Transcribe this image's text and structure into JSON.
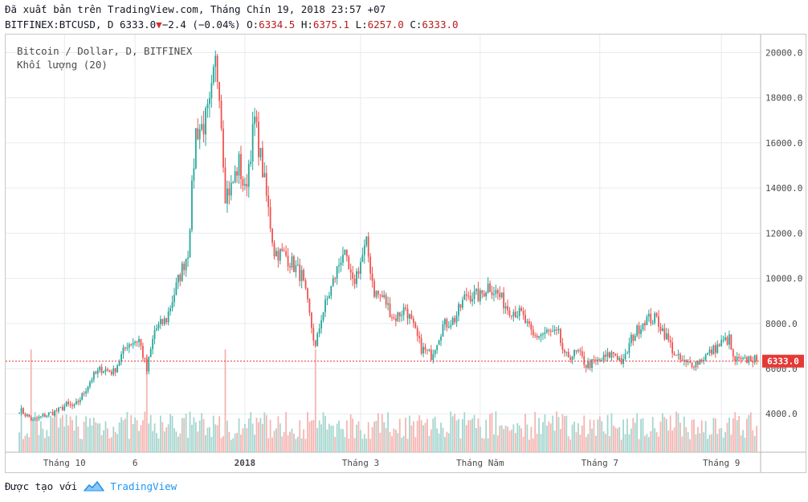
{
  "header": {
    "export_line": "Đã xuất bản trên TradingView.com, Tháng Chín 19, 2018 23:57 +07",
    "symbol": "BITFINEX:BTCUSD, D",
    "last": "6333.0",
    "change": "−2.4 (−0.04%)",
    "o_label": "O:",
    "o_val": "6334.5",
    "h_label": "H:",
    "h_val": "6375.1",
    "l_label": "L:",
    "l_val": "6257.0",
    "c_label": "C:",
    "c_val": "6333.0"
  },
  "legend": {
    "title": "Bitcoin / Dollar, D, BITFINEX",
    "volume": "Khối lượng (20)"
  },
  "footer": {
    "created_with": "Được tạo với",
    "brand": "TradingView"
  },
  "colors": {
    "up": "#26a69a",
    "down": "#ef5350",
    "vol_up": "#a5d6cf",
    "vol_down": "#f5b5b1",
    "last_price": "#e53935",
    "grid": "#e6ebf0"
  },
  "chart_data": {
    "type": "candlestick",
    "symbol": "BTCUSD",
    "exchange": "BITFINEX",
    "interval": "D",
    "ylim": [
      2300,
      20800
    ],
    "y_ticks": [
      "20000.0",
      "18000.0",
      "16000.0",
      "14000.0",
      "12000.0",
      "10000.0",
      "8000.0",
      "6000.0",
      "4000.0"
    ],
    "x_ticks": [
      "Tháng 10",
      "6",
      "2018",
      "Tháng 3",
      "Tháng Năm",
      "Tháng 7",
      "Tháng 9"
    ],
    "last_price_label": "6333.0",
    "last_price": 6333,
    "grid": true,
    "close_path": [
      [
        "2017-09-08",
        4200
      ],
      [
        "2017-09-15",
        3700
      ],
      [
        "2017-09-20",
        3900
      ],
      [
        "2017-09-28",
        4150
      ],
      [
        "2017-10-02",
        4400
      ],
      [
        "2017-10-06",
        4300
      ],
      [
        "2017-10-10",
        4800
      ],
      [
        "2017-10-15",
        5600
      ],
      [
        "2017-10-20",
        6000
      ],
      [
        "2017-10-26",
        5850
      ],
      [
        "2017-11-02",
        7100
      ],
      [
        "2017-11-08",
        7300
      ],
      [
        "2017-11-12",
        5900
      ],
      [
        "2017-11-16",
        7700
      ],
      [
        "2017-11-22",
        8200
      ],
      [
        "2017-11-28",
        9900
      ],
      [
        "2017-12-03",
        11200
      ],
      [
        "2017-12-07",
        16500
      ],
      [
        "2017-12-11",
        16800
      ],
      [
        "2017-12-14",
        17500
      ],
      [
        "2017-12-17",
        19500
      ],
      [
        "2017-12-19",
        18500
      ],
      [
        "2017-12-22",
        13800
      ],
      [
        "2017-12-25",
        14000
      ],
      [
        "2017-12-29",
        15100
      ],
      [
        "2018-01-01",
        13800
      ],
      [
        "2018-01-06",
        17000
      ],
      [
        "2018-01-10",
        14800
      ],
      [
        "2018-01-16",
        11200
      ],
      [
        "2018-01-22",
        11000
      ],
      [
        "2018-01-30",
        10100
      ],
      [
        "2018-02-02",
        8800
      ],
      [
        "2018-02-06",
        6900
      ],
      [
        "2018-02-09",
        8300
      ],
      [
        "2018-02-16",
        10100
      ],
      [
        "2018-02-20",
        11200
      ],
      [
        "2018-02-25",
        9700
      ],
      [
        "2018-03-04",
        11500
      ],
      [
        "2018-03-08",
        9400
      ],
      [
        "2018-03-13",
        9100
      ],
      [
        "2018-03-18",
        8200
      ],
      [
        "2018-03-24",
        8700
      ],
      [
        "2018-04-01",
        6900
      ],
      [
        "2018-04-06",
        6600
      ],
      [
        "2018-04-12",
        7900
      ],
      [
        "2018-04-18",
        8200
      ],
      [
        "2018-04-24",
        9300
      ],
      [
        "2018-05-01",
        9200
      ],
      [
        "2018-05-05",
        9700
      ],
      [
        "2018-05-10",
        9300
      ],
      [
        "2018-05-15",
        8700
      ],
      [
        "2018-05-22",
        8400
      ],
      [
        "2018-05-28",
        7400
      ],
      [
        "2018-06-04",
        7600
      ],
      [
        "2018-06-10",
        7500
      ],
      [
        "2018-06-13",
        6500
      ],
      [
        "2018-06-20",
        6700
      ],
      [
        "2018-06-24",
        6150
      ],
      [
        "2018-07-01",
        6350
      ],
      [
        "2018-07-08",
        6700
      ],
      [
        "2018-07-13",
        6250
      ],
      [
        "2018-07-17",
        7300
      ],
      [
        "2018-07-24",
        8200
      ],
      [
        "2018-07-30",
        8200
      ],
      [
        "2018-08-04",
        7400
      ],
      [
        "2018-08-09",
        6500
      ],
      [
        "2018-08-14",
        6200
      ],
      [
        "2018-08-20",
        6300
      ],
      [
        "2018-08-26",
        6700
      ],
      [
        "2018-09-02",
        7200
      ],
      [
        "2018-09-05",
        7300
      ],
      [
        "2018-09-07",
        6400
      ],
      [
        "2018-09-12",
        6300
      ],
      [
        "2018-09-16",
        6500
      ],
      [
        "2018-09-19",
        6333
      ]
    ],
    "volume_spikes": [
      [
        "2017-09-14",
        1.0
      ],
      [
        "2017-11-12",
        0.95
      ],
      [
        "2017-12-22",
        1.0
      ],
      [
        "2018-02-06",
        1.0
      ]
    ]
  }
}
